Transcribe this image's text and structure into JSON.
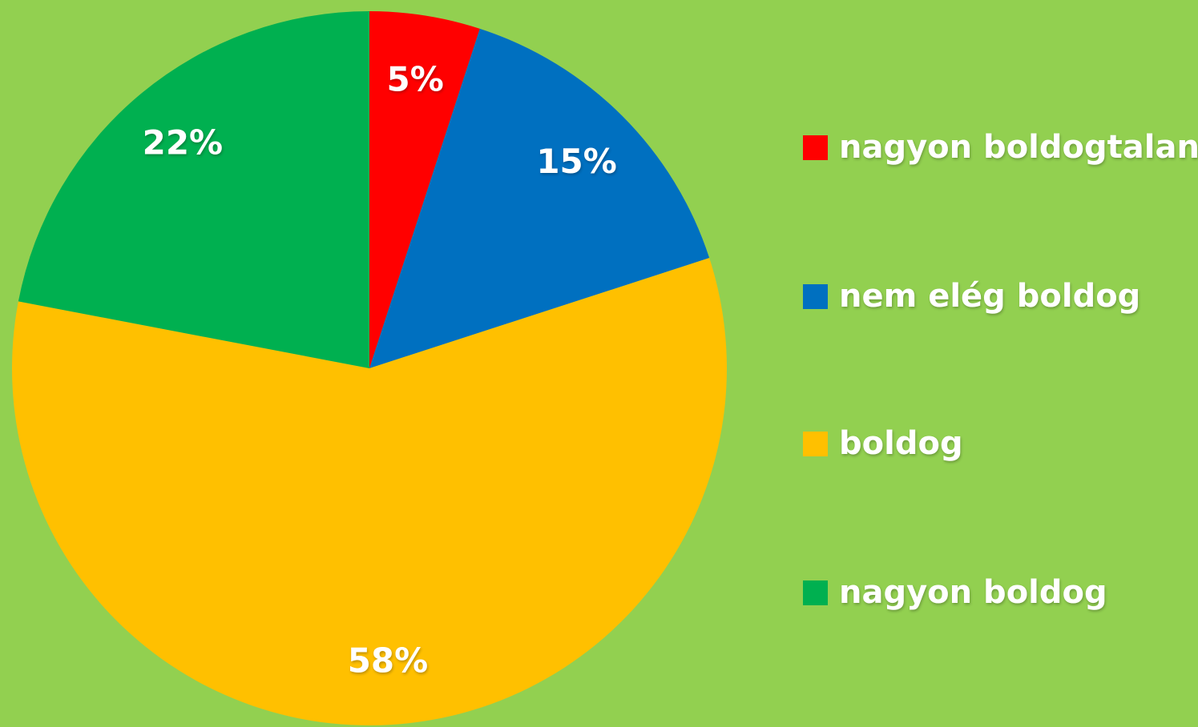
{
  "chart_data": {
    "type": "pie",
    "categories": [
      "nagyon boldogtalan",
      "nem elég boldog",
      "boldog",
      "nagyon boldog"
    ],
    "values": [
      5,
      15,
      58,
      22
    ],
    "value_labels": [
      "5%",
      "15%",
      "58%",
      "22%"
    ],
    "colors": [
      "#ff0000",
      "#0070c0",
      "#ffc000",
      "#00b050"
    ],
    "background": "#92d050",
    "start_angle": "top, clockwise",
    "legend_position": "right"
  }
}
